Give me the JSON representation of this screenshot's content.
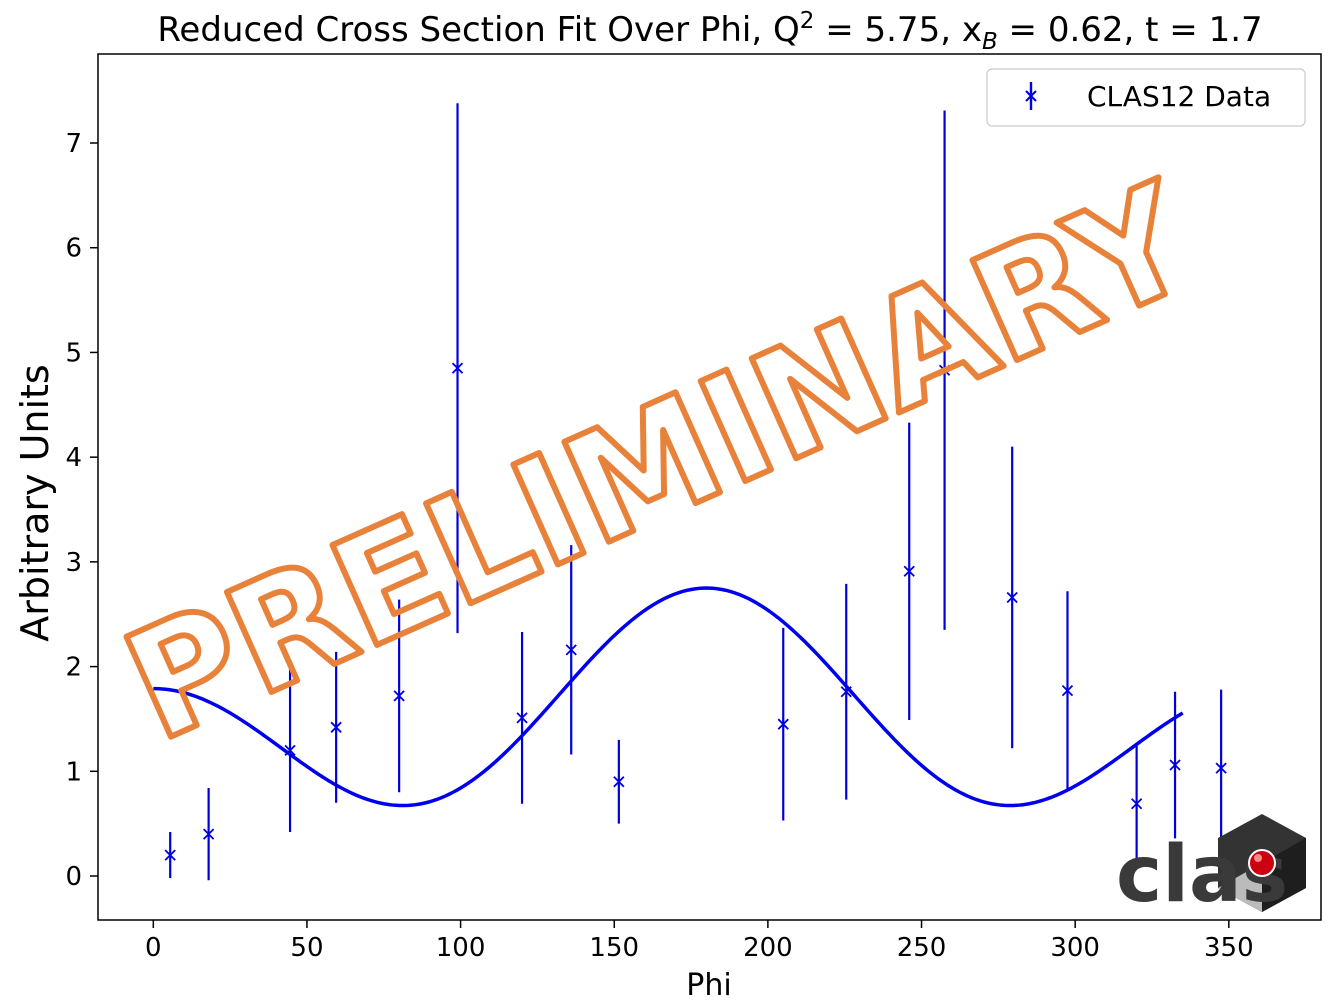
{
  "chart_data": {
    "type": "scatter",
    "title_parts": {
      "prefix": "Reduced Cross Section Fit Over Phi, Q",
      "q_sup": "2",
      "q_eq": " = 5.75, x",
      "x_sub": "B",
      "rest": " = 0.62, t = 1.7"
    },
    "xlabel": "Phi",
    "ylabel": "Arbitrary Units",
    "xlim": [
      -18,
      380
    ],
    "ylim": [
      -0.42,
      7.85
    ],
    "xticks": [
      0,
      50,
      100,
      150,
      200,
      250,
      300,
      350
    ],
    "yticks": [
      0,
      1,
      2,
      3,
      4,
      5,
      6,
      7
    ],
    "grid": false,
    "legend": {
      "position": "top-right",
      "entries": [
        "CLAS12 Data"
      ]
    },
    "series": [
      {
        "name": "CLAS12 Data",
        "marker": "x",
        "color": "#0000dd",
        "points": [
          {
            "x": 5.5,
            "y": 0.2,
            "err": 0.22
          },
          {
            "x": 18,
            "y": 0.4,
            "err": 0.44
          },
          {
            "x": 44.5,
            "y": 1.2,
            "err": 0.78
          },
          {
            "x": 59.5,
            "y": 1.42,
            "err": 0.72
          },
          {
            "x": 80,
            "y": 1.72,
            "err": 0.92
          },
          {
            "x": 99,
            "y": 4.85,
            "err": 2.53
          },
          {
            "x": 120,
            "y": 1.51,
            "err": 0.82
          },
          {
            "x": 136,
            "y": 2.16,
            "err": 1.0
          },
          {
            "x": 151.5,
            "y": 0.9,
            "err": 0.4
          },
          {
            "x": 205,
            "y": 1.45,
            "err": 0.92
          },
          {
            "x": 225.5,
            "y": 1.76,
            "err": 1.03
          },
          {
            "x": 246,
            "y": 2.91,
            "err": 1.42
          },
          {
            "x": 257.5,
            "y": 4.83,
            "err": 2.48
          },
          {
            "x": 279.5,
            "y": 2.66,
            "err": 1.44
          },
          {
            "x": 297.5,
            "y": 1.77,
            "err": 0.95
          },
          {
            "x": 320,
            "y": 0.69,
            "err": 0.58
          },
          {
            "x": 332.5,
            "y": 1.06,
            "err": 0.7
          },
          {
            "x": 347.5,
            "y": 1.03,
            "err": 0.75
          }
        ]
      },
      {
        "type": "line",
        "color": "#0000ee",
        "fit": {
          "A": 1.49,
          "B": 0.78,
          "C": -0.48,
          "x_range": [
            0,
            335
          ]
        }
      }
    ]
  },
  "watermark": {
    "text": "PRELIMINARY",
    "color": "#e8823a"
  },
  "logo": {
    "text": "clas",
    "ball_color": "#cc0011"
  }
}
